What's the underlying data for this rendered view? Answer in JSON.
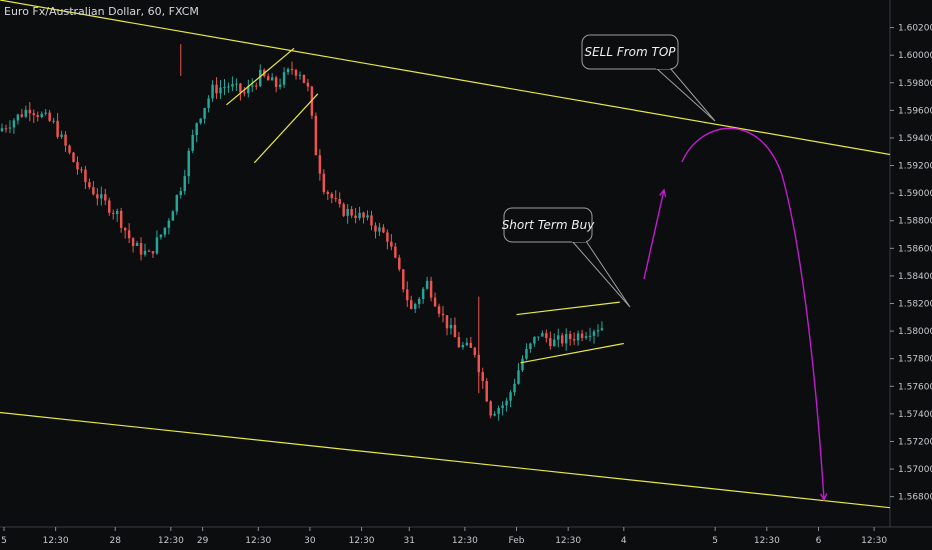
{
  "chart_data": {
    "type": "candlestick",
    "title": "Euro Fx/Australian Dollar, 60, FXCM",
    "y_axis": {
      "position": "right",
      "ticks": [
        "1.60200",
        "1.60000",
        "1.59800",
        "1.59600",
        "1.59400",
        "1.59200",
        "1.59000",
        "1.58800",
        "1.58600",
        "1.58400",
        "1.58200",
        "1.58000",
        "1.57800",
        "1.57600",
        "1.57400",
        "1.57200",
        "1.57000",
        "1.56800"
      ],
      "ylim": [
        1.5658,
        1.604
      ]
    },
    "x_axis": {
      "ticks": [
        "5",
        "12:30",
        "28",
        "12:30",
        "29",
        "12:30",
        "30",
        "12:30",
        "31",
        "12:30",
        "Feb",
        "12:30",
        "4",
        "5",
        "12:30",
        "6",
        "12:30"
      ],
      "xlim": [
        0,
        224
      ]
    },
    "colors": {
      "up": "#26a69a",
      "down": "#ef5350",
      "trendline": "#e8e840",
      "projection": "#c21bd1",
      "callout_border": "#9e9e9e"
    },
    "annotations": {
      "sell": "SELL From TOP",
      "buy": "Short Term Buy"
    },
    "trendlines": [
      {
        "name": "channel-top",
        "x": [
          0,
          224
        ],
        "y": [
          1.604,
          1.5928
        ]
      },
      {
        "name": "channel-bottom",
        "x": [
          0,
          224
        ],
        "y": [
          1.5741,
          1.5672
        ]
      },
      {
        "name": "flag-upper",
        "x": [
          57,
          74
        ],
        "y": [
          1.5964,
          1.6005
        ]
      },
      {
        "name": "flag-lower",
        "x": [
          64,
          80
        ],
        "y": [
          1.5922,
          1.5972
        ]
      },
      {
        "name": "wedge-upper",
        "x": [
          130,
          156
        ],
        "y": [
          1.5812,
          1.5821
        ]
      },
      {
        "name": "wedge-lower",
        "x": [
          131,
          157
        ],
        "y": [
          1.5777,
          1.5791
        ]
      }
    ],
    "ohlc_anchors": {
      "x": [
        0,
        8,
        14,
        18,
        22,
        26,
        30,
        34,
        38,
        42,
        46,
        50,
        54,
        58,
        62,
        66,
        70,
        74,
        76,
        78,
        80,
        82,
        86,
        90,
        94,
        98,
        100,
        104,
        108,
        112,
        116,
        120,
        124,
        128,
        132,
        136,
        140,
        144,
        148,
        151
      ],
      "y": [
        1.5945,
        1.5962,
        1.595,
        1.5928,
        1.5908,
        1.5895,
        1.5885,
        1.5862,
        1.5855,
        1.5875,
        1.5905,
        1.5952,
        1.5975,
        1.5978,
        1.5972,
        1.5985,
        1.5978,
        1.599,
        1.5988,
        1.5975,
        1.593,
        1.5905,
        1.5888,
        1.5885,
        1.5878,
        1.5868,
        1.585,
        1.5815,
        1.5835,
        1.581,
        1.579,
        1.5785,
        1.5742,
        1.5748,
        1.578,
        1.5798,
        1.5792,
        1.5795,
        1.58,
        1.5803
      ]
    }
  }
}
